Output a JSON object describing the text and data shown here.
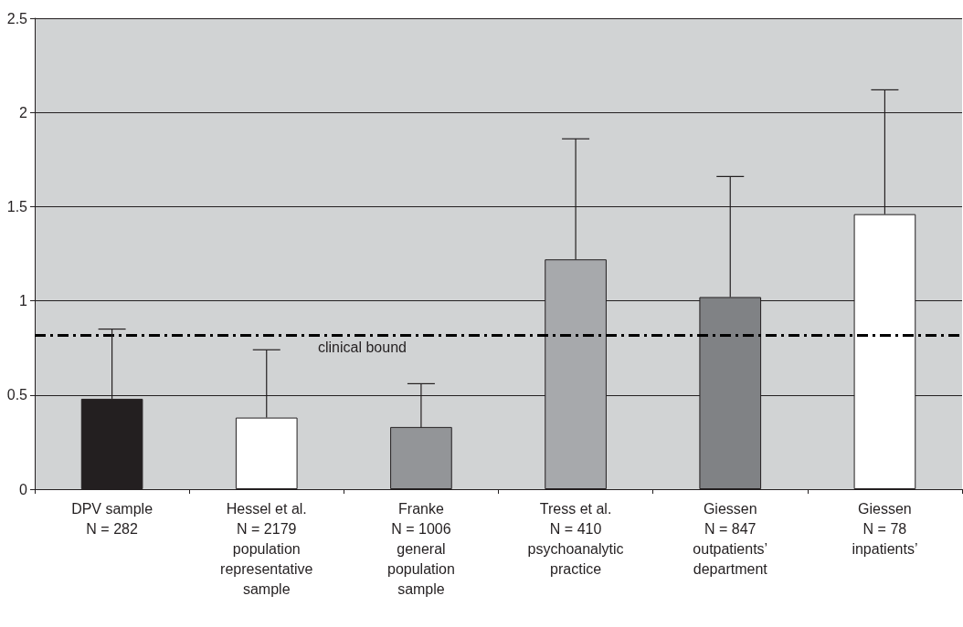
{
  "chart_data": {
    "type": "bar",
    "categories": [
      "DPV sample\nN = 282",
      "Hessel et al.\nN = 2179\npopulation\nrepresentative\nsample",
      "Franke\nN = 1006\ngeneral\npopulation\nsample",
      "Tress et al.\nN = 410\npsychoanalytic\npractice",
      "Giessen\nN = 847\noutpatients’\ndepartment",
      "Giessen\nN = 78\ninpatients’"
    ],
    "values": [
      0.48,
      0.38,
      0.33,
      1.22,
      1.02,
      1.46
    ],
    "colors": [
      "#231f20",
      "#ffffff",
      "#939598",
      "#a7a9ac",
      "#808285",
      "#ffffff"
    ],
    "errors": [
      [
        0.48,
        0.85
      ],
      [
        0.38,
        0.74
      ],
      [
        0.33,
        0.56
      ],
      [
        1.22,
        1.86
      ],
      [
        1.02,
        1.66
      ],
      [
        1.46,
        2.12
      ]
    ],
    "ylim": [
      0,
      2.5
    ],
    "yticks": [
      0,
      0.5,
      1,
      1.5,
      2,
      2.5
    ],
    "grid": "y",
    "ref_lines": [
      {
        "axis": "y",
        "value": 0.82,
        "label": "clinical bound",
        "color": "#000000",
        "line_style": "dashed"
      }
    ]
  }
}
